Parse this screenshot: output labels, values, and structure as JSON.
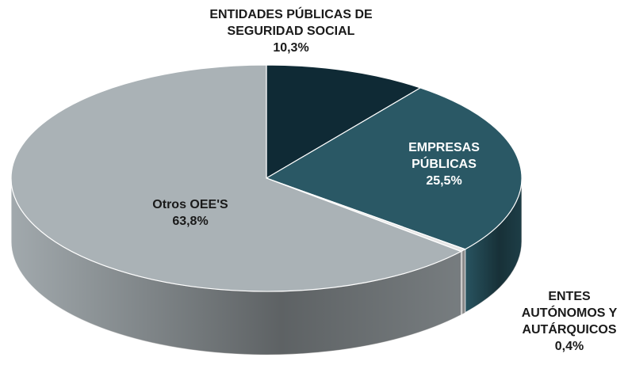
{
  "chart_data": {
    "type": "pie",
    "categories": [
      "ENTIDADES PÚBLICAS DE SEGURIDAD SOCIAL",
      "EMPRESAS PÚBLICAS",
      "ENTES AUTÓNOMOS Y AUTÁRQUICOS",
      "Otros OEE'S"
    ],
    "values": [
      10.3,
      25.5,
      0.4,
      63.8
    ],
    "value_labels": [
      "10,3%",
      "25,5%",
      "0,4%",
      "63,8%"
    ],
    "colors": [
      "#0f2a35",
      "#2a5865",
      "#e6e6e6",
      "#aab2b6"
    ]
  }
}
